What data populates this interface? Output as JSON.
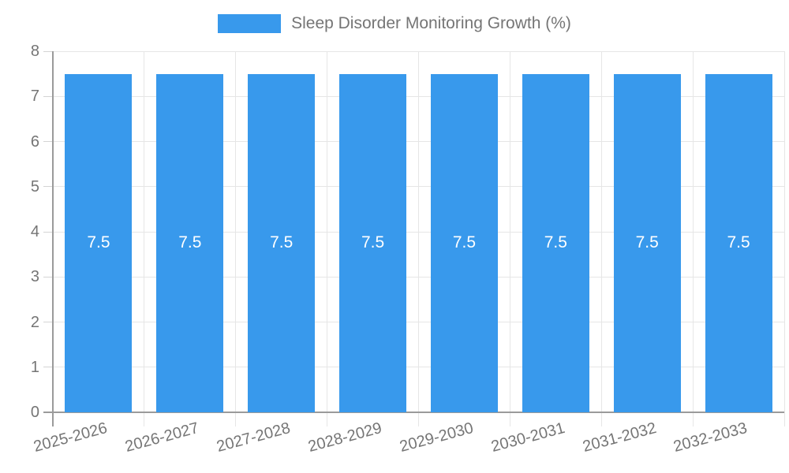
{
  "chart_data": {
    "type": "bar",
    "title": "Sleep Disorder Monitoring Growth (%)",
    "categories": [
      "2025-2026",
      "2026-2027",
      "2027-2028",
      "2028-2029",
      "2029-2030",
      "2030-2031",
      "2031-2032",
      "2032-2033"
    ],
    "series": [
      {
        "name": "Sleep Disorder Monitoring Growth (%)",
        "values": [
          7.5,
          7.5,
          7.5,
          7.5,
          7.5,
          7.5,
          7.5,
          7.5
        ]
      }
    ],
    "value_labels": [
      "7.5",
      "7.5",
      "7.5",
      "7.5",
      "7.5",
      "7.5",
      "7.5",
      "7.5"
    ],
    "xlabel": "",
    "ylabel": "",
    "ylim": [
      0,
      8
    ],
    "yticks": [
      0,
      1,
      2,
      3,
      4,
      5,
      6,
      7,
      8
    ],
    "grid": true,
    "legend_position": "top-center",
    "x_label_rotation_deg": -15,
    "colors": {
      "bar": "#3899EC",
      "grid": "#E6E6E6",
      "axis": "#9B9B9B",
      "tick": "#D4D4D4",
      "text": "#757575",
      "value_label": "#FFFFFF",
      "background": "#FFFFFF"
    }
  }
}
